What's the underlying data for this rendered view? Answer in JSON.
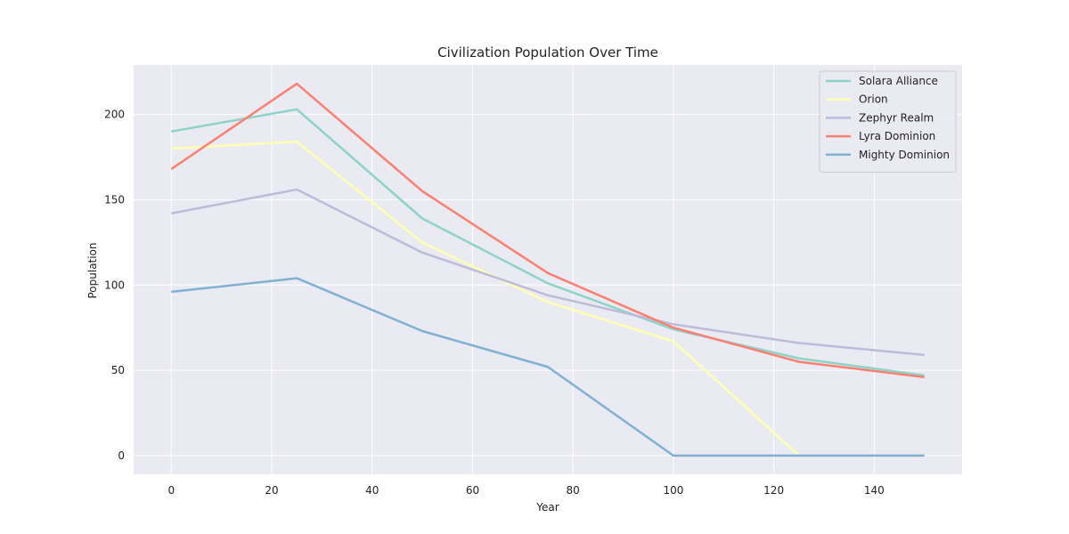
{
  "chart_data": {
    "type": "line",
    "title": "Civilization Population Over Time",
    "xlabel": "Year",
    "ylabel": "Population",
    "x": [
      0,
      25,
      50,
      75,
      100,
      125,
      150
    ],
    "xlim": [
      -7.5,
      157.5
    ],
    "ylim": [
      -11,
      229
    ],
    "xticks": [
      0,
      20,
      40,
      60,
      80,
      100,
      120,
      140
    ],
    "yticks": [
      0,
      50,
      100,
      150,
      200
    ],
    "grid": true,
    "legend_position": "top-right",
    "background": "#eaeaf2",
    "series": [
      {
        "name": "Solara Alliance",
        "color": "#8dd3c7",
        "values": [
          190,
          203,
          139,
          101,
          74,
          57,
          47
        ]
      },
      {
        "name": "Orion",
        "color": "#ffffb3",
        "values": [
          180,
          184,
          125,
          90,
          67,
          0,
          null
        ]
      },
      {
        "name": "Zephyr Realm",
        "color": "#bebada",
        "values": [
          142,
          156,
          119,
          94,
          77,
          66,
          59
        ]
      },
      {
        "name": "Lyra Dominion",
        "color": "#fb8072",
        "values": [
          168,
          218,
          155,
          107,
          75,
          55,
          46
        ]
      },
      {
        "name": "Mighty Dominion",
        "color": "#80b1d3",
        "values": [
          96,
          104,
          73,
          52,
          0,
          0,
          0
        ]
      }
    ]
  }
}
